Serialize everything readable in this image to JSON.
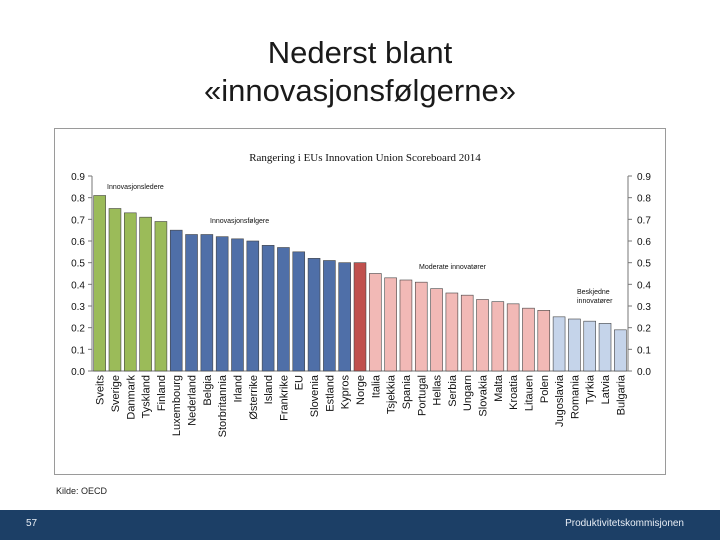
{
  "slide": {
    "title_line1": "Nederst blant",
    "title_line2": "«innovasjonsfølgerne»",
    "source": "Kilde: OECD",
    "page_number": "57",
    "brand": "Produktivitetskommisjonen"
  },
  "chart_data": {
    "type": "bar",
    "title": "Rangering i EUs Innovation Union Scoreboard 2014",
    "ylim": [
      0,
      0.9
    ],
    "yticks": [
      "0.0",
      "0.1",
      "0.2",
      "0.3",
      "0.4",
      "0.5",
      "0.6",
      "0.7",
      "0.8",
      "0.9"
    ],
    "grid": false,
    "categories": [
      "Sveits",
      "Sverige",
      "Danmark",
      "Tyskland",
      "Finland",
      "Luxembourg",
      "Nederland",
      "Belgia",
      "Storbritannia",
      "Irland",
      "Østerrike",
      "Island",
      "Frankrike",
      "EU",
      "Slovenia",
      "Estland",
      "Kypros",
      "Norge",
      "Italia",
      "Tsjekkia",
      "Spania",
      "Portugal",
      "Hellas",
      "Serbia",
      "Ungarn",
      "Slovakia",
      "Malta",
      "Kroatia",
      "Litauen",
      "Polen",
      "Jugoslavia",
      "Romania",
      "Tyrkia",
      "Latvia",
      "Bulgaria"
    ],
    "values": [
      0.81,
      0.75,
      0.73,
      0.71,
      0.69,
      0.65,
      0.63,
      0.63,
      0.62,
      0.61,
      0.6,
      0.58,
      0.57,
      0.55,
      0.52,
      0.51,
      0.5,
      0.5,
      0.45,
      0.43,
      0.42,
      0.41,
      0.38,
      0.36,
      0.35,
      0.33,
      0.32,
      0.31,
      0.29,
      0.28,
      0.25,
      0.24,
      0.23,
      0.22,
      0.19
    ],
    "groups": [
      {
        "label": "Innovasjonsledere",
        "from": 0,
        "to": 4,
        "color": "#9bbb59"
      },
      {
        "label": "Innovasjonsfølgere",
        "from": 5,
        "to": 16,
        "color": "#4f6fa8"
      },
      {
        "label": "Moderate innovatører",
        "from": 18,
        "to": 29,
        "color": "#f2b9b6"
      },
      {
        "label": "Beskjedne innovatører",
        "from": 30,
        "to": 34,
        "color": "#c5d4ea"
      }
    ],
    "highlight": {
      "index": 17,
      "color": "#c0504d"
    }
  }
}
